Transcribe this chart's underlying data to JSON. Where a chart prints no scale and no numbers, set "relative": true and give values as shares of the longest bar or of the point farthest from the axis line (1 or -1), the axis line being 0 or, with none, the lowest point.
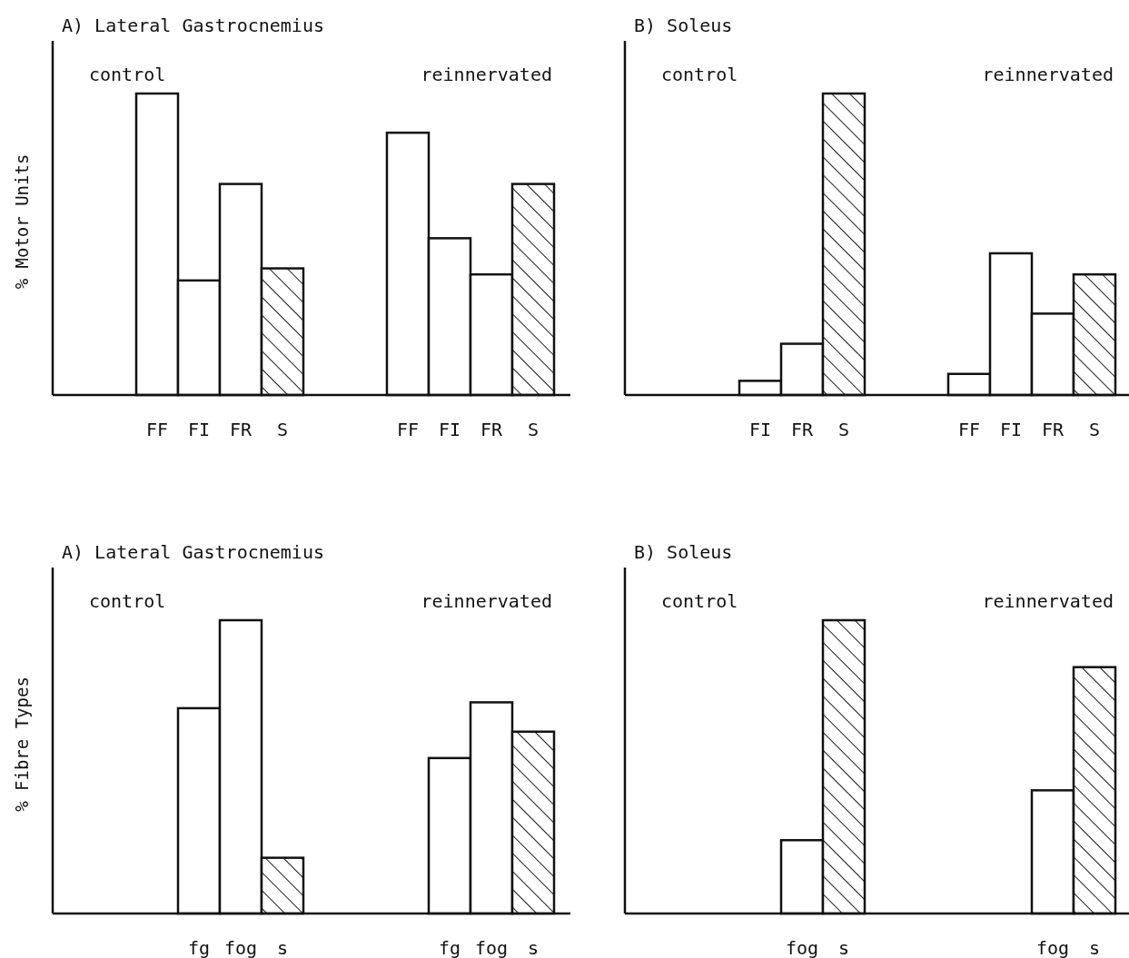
{
  "chart_data": [
    {
      "type": "bar",
      "title": "A) Lateral Gastrocnemius",
      "ylabel": "% Motor Units",
      "relative": true,
      "categories": [
        "FF",
        "FI",
        "FR",
        "S",
        null,
        null,
        "FF",
        "FI",
        "FR",
        "S"
      ],
      "values": [
        1,
        0.38,
        0.7,
        0.42,
        null,
        null,
        0.87,
        0.52,
        0.4,
        0.7
      ],
      "colors": [
        "#ffffff",
        "#ffffff",
        "#ffffff",
        "#1a1a1a",
        null,
        null,
        "#ffffff",
        "#ffffff",
        "#ffffff",
        "#1a1a1a"
      ],
      "annotations": [
        "control",
        "reinnervated"
      ]
    },
    {
      "type": "bar",
      "title": "B) Soleus",
      "relative": true,
      "categories": [
        null,
        "FI",
        "FR",
        "S",
        null,
        null,
        "FF",
        "FI",
        "FR",
        "S"
      ],
      "values": [
        null,
        0.047,
        0.17,
        1,
        null,
        null,
        0.07,
        0.47,
        0.27,
        0.4
      ],
      "colors": [
        null,
        "#ffffff",
        "#ffffff",
        "#1a1a1a",
        null,
        null,
        "#ffffff",
        "#ffffff",
        "#ffffff",
        "#1a1a1a"
      ],
      "annotations": [
        "control",
        "reinnervated"
      ]
    },
    {
      "type": "bar",
      "title": "A) Lateral Gastrocnemius",
      "ylabel": "% Fibre Types",
      "relative": true,
      "categories": [
        "fg",
        "fog",
        "s",
        null,
        null,
        null,
        "fg",
        "fog",
        "s"
      ],
      "values": [
        0.7,
        1,
        0.19,
        null,
        null,
        null,
        0.53,
        0.72,
        0.62
      ],
      "colors": [
        "#ffffff",
        "#ffffff",
        "#1a1a1a",
        null,
        null,
        null,
        "#ffffff",
        "#ffffff",
        "#1a1a1a"
      ],
      "annotations": [
        "control",
        "reinnervated"
      ]
    },
    {
      "type": "bar",
      "title": "B) Soleus",
      "relative": true,
      "categories": [
        "fog",
        "s",
        null,
        null,
        null,
        null,
        "fog",
        "s"
      ],
      "values": [
        0.25,
        1,
        null,
        null,
        null,
        null,
        0.42,
        0.84
      ],
      "colors": [
        "#ffffff",
        "#1a1a1a",
        null,
        null,
        null,
        null,
        "#ffffff",
        "#1a1a1a"
      ],
      "annotations": [
        "control",
        "reinnervated"
      ]
    }
  ]
}
